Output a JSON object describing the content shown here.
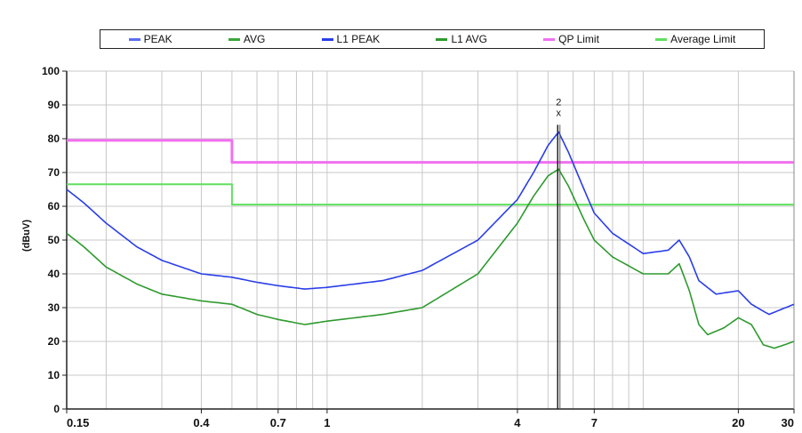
{
  "chart_data": {
    "type": "line",
    "ylabel": "(dBuV)",
    "xscale": "log",
    "xlim": [
      0.15,
      30
    ],
    "ylim": [
      0,
      100
    ],
    "grid": true,
    "legend_position": "top",
    "legend": [
      {
        "label": "PEAK",
        "color": "#5a6ef0"
      },
      {
        "label": "AVG",
        "color": "#3aa83a"
      },
      {
        "label": "L1 PEAK",
        "color": "#2a3ee8"
      },
      {
        "label": "L1 AVG",
        "color": "#2e9a2e"
      },
      {
        "label": "QP Limit",
        "color": "#f070f0"
      },
      {
        "label": "Average Limit",
        "color": "#60e060"
      }
    ],
    "yticks": [
      0,
      10,
      20,
      30,
      40,
      50,
      60,
      70,
      80,
      90,
      100
    ],
    "xtick_labels": [
      {
        "value": 0.15,
        "label": "0.15"
      },
      {
        "value": 0.4,
        "label": "0.4"
      },
      {
        "value": 0.7,
        "label": "0.7"
      },
      {
        "value": 1,
        "label": "1"
      },
      {
        "value": 4,
        "label": "4"
      },
      {
        "value": 7,
        "label": "7"
      },
      {
        "value": 20,
        "label": "20"
      },
      {
        "value": 30,
        "label": "30"
      }
    ],
    "series": [
      {
        "name": "QP Limit",
        "color": "#f070f0",
        "width": 3,
        "points": [
          [
            0.15,
            79.5
          ],
          [
            0.5,
            79.5
          ],
          [
            0.5,
            73
          ],
          [
            30,
            73
          ]
        ]
      },
      {
        "name": "Average Limit",
        "color": "#60e060",
        "width": 2,
        "points": [
          [
            0.15,
            66.5
          ],
          [
            0.5,
            66.5
          ],
          [
            0.5,
            60.5
          ],
          [
            30,
            60.5
          ]
        ]
      },
      {
        "name": "L1 PEAK",
        "color": "#2a3ee8",
        "width": 1.6,
        "points": [
          [
            0.15,
            65
          ],
          [
            0.17,
            61
          ],
          [
            0.2,
            55
          ],
          [
            0.25,
            48
          ],
          [
            0.3,
            44
          ],
          [
            0.4,
            40
          ],
          [
            0.5,
            39
          ],
          [
            0.6,
            37.5
          ],
          [
            0.7,
            36.5
          ],
          [
            0.85,
            35.5
          ],
          [
            1,
            36
          ],
          [
            1.5,
            38
          ],
          [
            2,
            41
          ],
          [
            3,
            50
          ],
          [
            4,
            62
          ],
          [
            4.5,
            70
          ],
          [
            5,
            78
          ],
          [
            5.4,
            82
          ],
          [
            5.8,
            76
          ],
          [
            6.5,
            65
          ],
          [
            7,
            58
          ],
          [
            8,
            52
          ],
          [
            10,
            46
          ],
          [
            12,
            47
          ],
          [
            13,
            50
          ],
          [
            14,
            45
          ],
          [
            15,
            38
          ],
          [
            17,
            34
          ],
          [
            20,
            35
          ],
          [
            22,
            31
          ],
          [
            25,
            28
          ],
          [
            30,
            31
          ]
        ]
      },
      {
        "name": "L1 AVG",
        "color": "#2e9a2e",
        "width": 1.6,
        "points": [
          [
            0.15,
            52
          ],
          [
            0.17,
            48
          ],
          [
            0.2,
            42
          ],
          [
            0.25,
            37
          ],
          [
            0.3,
            34
          ],
          [
            0.4,
            32
          ],
          [
            0.5,
            31
          ],
          [
            0.6,
            28
          ],
          [
            0.7,
            26.5
          ],
          [
            0.85,
            25
          ],
          [
            1,
            26
          ],
          [
            1.5,
            28
          ],
          [
            2,
            30
          ],
          [
            3,
            40
          ],
          [
            4,
            55
          ],
          [
            4.5,
            63
          ],
          [
            5,
            69
          ],
          [
            5.4,
            71
          ],
          [
            5.8,
            66
          ],
          [
            6.5,
            56
          ],
          [
            7,
            50
          ],
          [
            8,
            45
          ],
          [
            10,
            40
          ],
          [
            12,
            40
          ],
          [
            13,
            43
          ],
          [
            14,
            35
          ],
          [
            15,
            25
          ],
          [
            16,
            22
          ],
          [
            18,
            24
          ],
          [
            20,
            27
          ],
          [
            22,
            25
          ],
          [
            24,
            19
          ],
          [
            26,
            18
          ],
          [
            28,
            19
          ],
          [
            30,
            20
          ]
        ]
      }
    ],
    "markers": [
      {
        "x": 5.4,
        "y": 82,
        "label": "2",
        "symbol": "x"
      }
    ]
  }
}
